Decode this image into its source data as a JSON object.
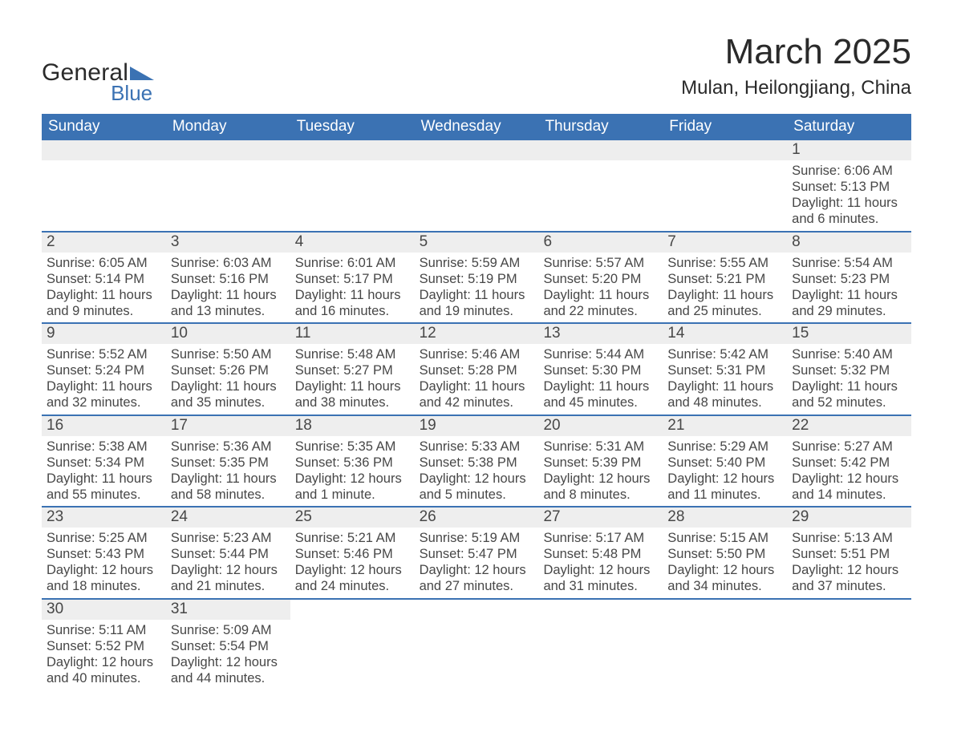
{
  "logo": {
    "text_top": "General",
    "text_bottom": "Blue",
    "icon_color": "#3b72b3"
  },
  "header": {
    "title": "March 2025",
    "location": "Mulan, Heilongjiang, China"
  },
  "style": {
    "header_bg": "#3b72b3",
    "header_text": "#ffffff",
    "daystrip_bg": "#eeeeee",
    "body_text": "#474747",
    "row_border": "#3b72b3",
    "title_fontsize": 44,
    "location_fontsize": 24,
    "weekday_fontsize": 19,
    "daynum_fontsize": 19,
    "body_fontsize": 16.5
  },
  "weekdays": [
    "Sunday",
    "Monday",
    "Tuesday",
    "Wednesday",
    "Thursday",
    "Friday",
    "Saturday"
  ],
  "weeks": [
    [
      {
        "empty": true
      },
      {
        "empty": true
      },
      {
        "empty": true
      },
      {
        "empty": true
      },
      {
        "empty": true
      },
      {
        "empty": true
      },
      {
        "day": "1",
        "sunrise": "Sunrise: 6:06 AM",
        "sunset": "Sunset: 5:13 PM",
        "daylight1": "Daylight: 11 hours",
        "daylight2": "and 6 minutes."
      }
    ],
    [
      {
        "day": "2",
        "sunrise": "Sunrise: 6:05 AM",
        "sunset": "Sunset: 5:14 PM",
        "daylight1": "Daylight: 11 hours",
        "daylight2": "and 9 minutes."
      },
      {
        "day": "3",
        "sunrise": "Sunrise: 6:03 AM",
        "sunset": "Sunset: 5:16 PM",
        "daylight1": "Daylight: 11 hours",
        "daylight2": "and 13 minutes."
      },
      {
        "day": "4",
        "sunrise": "Sunrise: 6:01 AM",
        "sunset": "Sunset: 5:17 PM",
        "daylight1": "Daylight: 11 hours",
        "daylight2": "and 16 minutes."
      },
      {
        "day": "5",
        "sunrise": "Sunrise: 5:59 AM",
        "sunset": "Sunset: 5:19 PM",
        "daylight1": "Daylight: 11 hours",
        "daylight2": "and 19 minutes."
      },
      {
        "day": "6",
        "sunrise": "Sunrise: 5:57 AM",
        "sunset": "Sunset: 5:20 PM",
        "daylight1": "Daylight: 11 hours",
        "daylight2": "and 22 minutes."
      },
      {
        "day": "7",
        "sunrise": "Sunrise: 5:55 AM",
        "sunset": "Sunset: 5:21 PM",
        "daylight1": "Daylight: 11 hours",
        "daylight2": "and 25 minutes."
      },
      {
        "day": "8",
        "sunrise": "Sunrise: 5:54 AM",
        "sunset": "Sunset: 5:23 PM",
        "daylight1": "Daylight: 11 hours",
        "daylight2": "and 29 minutes."
      }
    ],
    [
      {
        "day": "9",
        "sunrise": "Sunrise: 5:52 AM",
        "sunset": "Sunset: 5:24 PM",
        "daylight1": "Daylight: 11 hours",
        "daylight2": "and 32 minutes."
      },
      {
        "day": "10",
        "sunrise": "Sunrise: 5:50 AM",
        "sunset": "Sunset: 5:26 PM",
        "daylight1": "Daylight: 11 hours",
        "daylight2": "and 35 minutes."
      },
      {
        "day": "11",
        "sunrise": "Sunrise: 5:48 AM",
        "sunset": "Sunset: 5:27 PM",
        "daylight1": "Daylight: 11 hours",
        "daylight2": "and 38 minutes."
      },
      {
        "day": "12",
        "sunrise": "Sunrise: 5:46 AM",
        "sunset": "Sunset: 5:28 PM",
        "daylight1": "Daylight: 11 hours",
        "daylight2": "and 42 minutes."
      },
      {
        "day": "13",
        "sunrise": "Sunrise: 5:44 AM",
        "sunset": "Sunset: 5:30 PM",
        "daylight1": "Daylight: 11 hours",
        "daylight2": "and 45 minutes."
      },
      {
        "day": "14",
        "sunrise": "Sunrise: 5:42 AM",
        "sunset": "Sunset: 5:31 PM",
        "daylight1": "Daylight: 11 hours",
        "daylight2": "and 48 minutes."
      },
      {
        "day": "15",
        "sunrise": "Sunrise: 5:40 AM",
        "sunset": "Sunset: 5:32 PM",
        "daylight1": "Daylight: 11 hours",
        "daylight2": "and 52 minutes."
      }
    ],
    [
      {
        "day": "16",
        "sunrise": "Sunrise: 5:38 AM",
        "sunset": "Sunset: 5:34 PM",
        "daylight1": "Daylight: 11 hours",
        "daylight2": "and 55 minutes."
      },
      {
        "day": "17",
        "sunrise": "Sunrise: 5:36 AM",
        "sunset": "Sunset: 5:35 PM",
        "daylight1": "Daylight: 11 hours",
        "daylight2": "and 58 minutes."
      },
      {
        "day": "18",
        "sunrise": "Sunrise: 5:35 AM",
        "sunset": "Sunset: 5:36 PM",
        "daylight1": "Daylight: 12 hours",
        "daylight2": "and 1 minute."
      },
      {
        "day": "19",
        "sunrise": "Sunrise: 5:33 AM",
        "sunset": "Sunset: 5:38 PM",
        "daylight1": "Daylight: 12 hours",
        "daylight2": "and 5 minutes."
      },
      {
        "day": "20",
        "sunrise": "Sunrise: 5:31 AM",
        "sunset": "Sunset: 5:39 PM",
        "daylight1": "Daylight: 12 hours",
        "daylight2": "and 8 minutes."
      },
      {
        "day": "21",
        "sunrise": "Sunrise: 5:29 AM",
        "sunset": "Sunset: 5:40 PM",
        "daylight1": "Daylight: 12 hours",
        "daylight2": "and 11 minutes."
      },
      {
        "day": "22",
        "sunrise": "Sunrise: 5:27 AM",
        "sunset": "Sunset: 5:42 PM",
        "daylight1": "Daylight: 12 hours",
        "daylight2": "and 14 minutes."
      }
    ],
    [
      {
        "day": "23",
        "sunrise": "Sunrise: 5:25 AM",
        "sunset": "Sunset: 5:43 PM",
        "daylight1": "Daylight: 12 hours",
        "daylight2": "and 18 minutes."
      },
      {
        "day": "24",
        "sunrise": "Sunrise: 5:23 AM",
        "sunset": "Sunset: 5:44 PM",
        "daylight1": "Daylight: 12 hours",
        "daylight2": "and 21 minutes."
      },
      {
        "day": "25",
        "sunrise": "Sunrise: 5:21 AM",
        "sunset": "Sunset: 5:46 PM",
        "daylight1": "Daylight: 12 hours",
        "daylight2": "and 24 minutes."
      },
      {
        "day": "26",
        "sunrise": "Sunrise: 5:19 AM",
        "sunset": "Sunset: 5:47 PM",
        "daylight1": "Daylight: 12 hours",
        "daylight2": "and 27 minutes."
      },
      {
        "day": "27",
        "sunrise": "Sunrise: 5:17 AM",
        "sunset": "Sunset: 5:48 PM",
        "daylight1": "Daylight: 12 hours",
        "daylight2": "and 31 minutes."
      },
      {
        "day": "28",
        "sunrise": "Sunrise: 5:15 AM",
        "sunset": "Sunset: 5:50 PM",
        "daylight1": "Daylight: 12 hours",
        "daylight2": "and 34 minutes."
      },
      {
        "day": "29",
        "sunrise": "Sunrise: 5:13 AM",
        "sunset": "Sunset: 5:51 PM",
        "daylight1": "Daylight: 12 hours",
        "daylight2": "and 37 minutes."
      }
    ],
    [
      {
        "day": "30",
        "sunrise": "Sunrise: 5:11 AM",
        "sunset": "Sunset: 5:52 PM",
        "daylight1": "Daylight: 12 hours",
        "daylight2": "and 40 minutes."
      },
      {
        "day": "31",
        "sunrise": "Sunrise: 5:09 AM",
        "sunset": "Sunset: 5:54 PM",
        "daylight1": "Daylight: 12 hours",
        "daylight2": "and 44 minutes."
      },
      {
        "trailing": true
      },
      {
        "trailing": true
      },
      {
        "trailing": true
      },
      {
        "trailing": true
      },
      {
        "trailing": true
      }
    ]
  ]
}
